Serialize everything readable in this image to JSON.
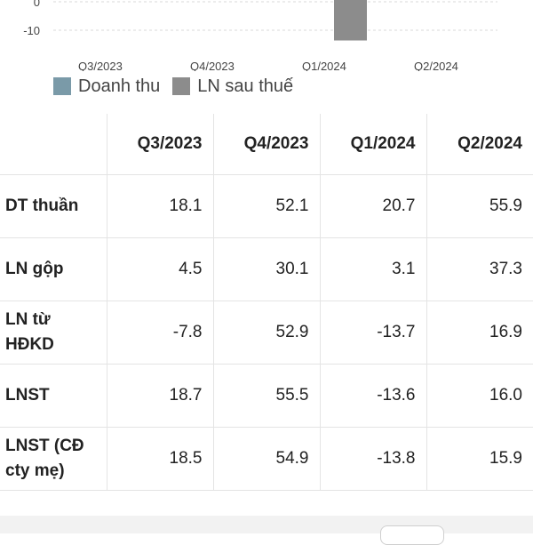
{
  "chart_data": {
    "type": "bar",
    "categories": [
      "Q3/2023",
      "Q4/2023",
      "Q1/2024",
      "Q2/2024"
    ],
    "series": [
      {
        "name": "Doanh thu",
        "values": [
          null,
          null,
          null,
          null
        ],
        "color": "#7a9aa8"
      },
      {
        "name": "LN sau thuế",
        "values": [
          null,
          null,
          -13.6,
          null
        ],
        "color": "#8c8c8c"
      }
    ],
    "y_ticks": [
      {
        "value": -10,
        "label": "-10"
      },
      {
        "value": 0,
        "label": "0"
      }
    ],
    "grid": "horizontal dashed",
    "legend": "bottom-left"
  },
  "table": {
    "columns": [
      "",
      "Q3/2023",
      "Q4/2023",
      "Q1/2024",
      "Q2/2024"
    ],
    "rows": [
      {
        "label": "DT thuần",
        "cells": [
          "18.1",
          "52.1",
          "20.7",
          "55.9"
        ]
      },
      {
        "label": "LN gộp",
        "cells": [
          "4.5",
          "30.1",
          "3.1",
          "37.3"
        ]
      },
      {
        "label": "LN từ HĐKD",
        "cells": [
          "-7.8",
          "52.9",
          "-13.7",
          "16.9"
        ]
      },
      {
        "label": "LNST",
        "cells": [
          "18.7",
          "55.5",
          "-13.6",
          "16.0"
        ]
      },
      {
        "label": "LNST (CĐ cty mẹ)",
        "cells": [
          "18.5",
          "54.9",
          "-13.8",
          "15.9"
        ]
      }
    ]
  }
}
